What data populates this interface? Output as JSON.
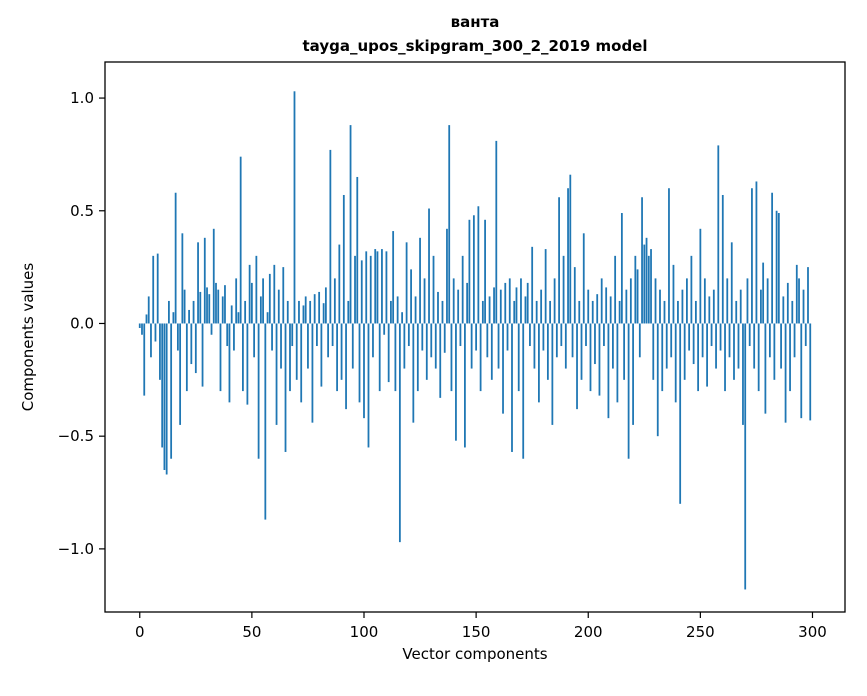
{
  "chart_data": {
    "type": "bar",
    "title": "ванта",
    "subtitle": "tayga_upos_skipgram_300_2_2019 model",
    "xlabel": "Vector components",
    "ylabel": "Components values",
    "color": "#1f77b4",
    "bar_width": 0.8,
    "xlim": [
      -15.5,
      314.5
    ],
    "ylim": [
      -1.28,
      1.16
    ],
    "grid": false,
    "legend": "none",
    "x_ticks": [
      {
        "value": 0,
        "label": "0"
      },
      {
        "value": 50,
        "label": "50"
      },
      {
        "value": 100,
        "label": "100"
      },
      {
        "value": 150,
        "label": "150"
      },
      {
        "value": 200,
        "label": "200"
      },
      {
        "value": 250,
        "label": "250"
      },
      {
        "value": 300,
        "label": "300"
      }
    ],
    "y_ticks": [
      {
        "value": 1.0,
        "label": "1.0"
      },
      {
        "value": 0.5,
        "label": "0.5"
      },
      {
        "value": 0.0,
        "label": "0.0"
      },
      {
        "value": -0.5,
        "label": "−0.5"
      },
      {
        "value": -1.0,
        "label": "−1.0"
      }
    ],
    "x_start": 0,
    "x_step": 1,
    "values": [
      -0.02,
      -0.05,
      -0.32,
      0.04,
      0.12,
      -0.15,
      0.3,
      -0.08,
      0.31,
      -0.25,
      -0.55,
      -0.65,
      -0.67,
      0.1,
      -0.6,
      0.05,
      0.58,
      -0.12,
      -0.45,
      0.4,
      0.15,
      -0.3,
      0.06,
      -0.18,
      0.1,
      -0.22,
      0.36,
      0.14,
      -0.28,
      0.38,
      0.16,
      0.13,
      -0.05,
      0.42,
      0.18,
      0.15,
      -0.3,
      0.12,
      0.17,
      -0.1,
      -0.35,
      0.08,
      -0.12,
      0.2,
      0.05,
      0.74,
      -0.3,
      0.1,
      -0.36,
      0.26,
      0.18,
      -0.15,
      0.3,
      -0.6,
      0.12,
      0.2,
      -0.87,
      0.05,
      0.22,
      -0.12,
      0.26,
      -0.45,
      0.15,
      -0.2,
      0.25,
      -0.57,
      0.1,
      -0.3,
      -0.1,
      1.03,
      -0.25,
      0.1,
      -0.35,
      0.08,
      0.12,
      -0.2,
      0.1,
      -0.44,
      0.13,
      -0.1,
      0.14,
      -0.28,
      0.09,
      0.16,
      -0.15,
      0.77,
      -0.1,
      0.2,
      -0.3,
      0.35,
      -0.25,
      0.57,
      -0.38,
      0.1,
      0.88,
      -0.2,
      0.3,
      0.65,
      -0.35,
      0.28,
      -0.42,
      0.32,
      -0.55,
      0.3,
      -0.15,
      0.33,
      0.32,
      -0.3,
      0.33,
      -0.05,
      0.32,
      -0.26,
      0.1,
      0.41,
      -0.3,
      0.12,
      -0.97,
      0.05,
      -0.2,
      0.36,
      -0.1,
      0.24,
      -0.44,
      0.12,
      -0.3,
      0.38,
      -0.12,
      0.2,
      -0.25,
      0.51,
      -0.15,
      0.3,
      -0.2,
      0.14,
      -0.33,
      0.1,
      -0.13,
      0.42,
      0.88,
      -0.3,
      0.2,
      -0.52,
      0.15,
      -0.1,
      0.3,
      -0.55,
      0.18,
      0.46,
      -0.2,
      0.48,
      -0.12,
      0.52,
      -0.3,
      0.1,
      0.46,
      -0.15,
      0.12,
      -0.25,
      0.16,
      0.81,
      -0.2,
      0.15,
      -0.4,
      0.18,
      -0.12,
      0.2,
      -0.57,
      0.1,
      0.16,
      -0.3,
      0.2,
      -0.6,
      0.12,
      0.18,
      -0.1,
      0.34,
      -0.2,
      0.1,
      -0.35,
      0.15,
      -0.12,
      0.33,
      -0.25,
      0.1,
      -0.45,
      0.2,
      -0.15,
      0.56,
      -0.1,
      0.3,
      -0.2,
      0.6,
      0.66,
      -0.15,
      0.25,
      -0.38,
      0.1,
      -0.25,
      0.4,
      -0.1,
      0.15,
      -0.3,
      0.1,
      -0.18,
      0.13,
      -0.32,
      0.2,
      -0.1,
      0.16,
      -0.42,
      0.12,
      -0.2,
      0.3,
      -0.35,
      0.1,
      0.49,
      -0.25,
      0.15,
      -0.6,
      0.2,
      -0.45,
      0.3,
      0.24,
      -0.15,
      0.56,
      0.35,
      0.38,
      0.3,
      0.33,
      -0.25,
      0.2,
      -0.5,
      0.15,
      -0.3,
      0.1,
      -0.2,
      0.6,
      -0.15,
      0.26,
      -0.35,
      0.1,
      -0.8,
      0.15,
      -0.25,
      0.2,
      -0.12,
      0.3,
      -0.18,
      0.1,
      -0.3,
      0.42,
      -0.15,
      0.2,
      -0.28,
      0.12,
      -0.1,
      0.15,
      -0.2,
      0.79,
      -0.12,
      0.57,
      -0.3,
      0.2,
      -0.15,
      0.36,
      -0.25,
      0.1,
      -0.2,
      0.15,
      -0.45,
      -1.18,
      0.2,
      -0.1,
      0.6,
      -0.2,
      0.63,
      -0.3,
      0.15,
      0.27,
      -0.4,
      0.2,
      -0.15,
      0.58,
      -0.25,
      0.5,
      0.49,
      -0.2,
      0.12,
      -0.44,
      0.18,
      -0.3,
      0.1,
      -0.15,
      0.26,
      0.2,
      -0.42,
      0.15,
      -0.1,
      0.25,
      -0.43
    ]
  }
}
